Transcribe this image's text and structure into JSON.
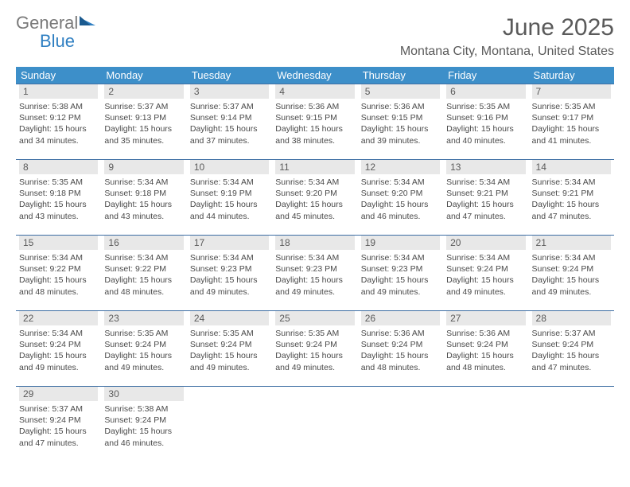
{
  "brand": {
    "part1": "General",
    "part2": "Blue"
  },
  "title": "June 2025",
  "location": "Montana City, Montana, United States",
  "colors": {
    "header_bg": "#3d8fc9",
    "header_text": "#ffffff",
    "rule": "#3d6ea3",
    "daynum_bg": "#e8e8e8",
    "body_text": "#4a4a4a",
    "title_text": "#5a5a5a",
    "logo_gray": "#7a7a7a",
    "logo_blue": "#2f7fc2"
  },
  "fonts": {
    "title_size_pt": 22,
    "location_size_pt": 12,
    "dow_size_pt": 10,
    "body_size_pt": 8
  },
  "days_of_week": [
    "Sunday",
    "Monday",
    "Tuesday",
    "Wednesday",
    "Thursday",
    "Friday",
    "Saturday"
  ],
  "weeks": [
    [
      {
        "n": "1",
        "sr": "5:38 AM",
        "ss": "9:12 PM",
        "dl": "15 hours and 34 minutes."
      },
      {
        "n": "2",
        "sr": "5:37 AM",
        "ss": "9:13 PM",
        "dl": "15 hours and 35 minutes."
      },
      {
        "n": "3",
        "sr": "5:37 AM",
        "ss": "9:14 PM",
        "dl": "15 hours and 37 minutes."
      },
      {
        "n": "4",
        "sr": "5:36 AM",
        "ss": "9:15 PM",
        "dl": "15 hours and 38 minutes."
      },
      {
        "n": "5",
        "sr": "5:36 AM",
        "ss": "9:15 PM",
        "dl": "15 hours and 39 minutes."
      },
      {
        "n": "6",
        "sr": "5:35 AM",
        "ss": "9:16 PM",
        "dl": "15 hours and 40 minutes."
      },
      {
        "n": "7",
        "sr": "5:35 AM",
        "ss": "9:17 PM",
        "dl": "15 hours and 41 minutes."
      }
    ],
    [
      {
        "n": "8",
        "sr": "5:35 AM",
        "ss": "9:18 PM",
        "dl": "15 hours and 43 minutes."
      },
      {
        "n": "9",
        "sr": "5:34 AM",
        "ss": "9:18 PM",
        "dl": "15 hours and 43 minutes."
      },
      {
        "n": "10",
        "sr": "5:34 AM",
        "ss": "9:19 PM",
        "dl": "15 hours and 44 minutes."
      },
      {
        "n": "11",
        "sr": "5:34 AM",
        "ss": "9:20 PM",
        "dl": "15 hours and 45 minutes."
      },
      {
        "n": "12",
        "sr": "5:34 AM",
        "ss": "9:20 PM",
        "dl": "15 hours and 46 minutes."
      },
      {
        "n": "13",
        "sr": "5:34 AM",
        "ss": "9:21 PM",
        "dl": "15 hours and 47 minutes."
      },
      {
        "n": "14",
        "sr": "5:34 AM",
        "ss": "9:21 PM",
        "dl": "15 hours and 47 minutes."
      }
    ],
    [
      {
        "n": "15",
        "sr": "5:34 AM",
        "ss": "9:22 PM",
        "dl": "15 hours and 48 minutes."
      },
      {
        "n": "16",
        "sr": "5:34 AM",
        "ss": "9:22 PM",
        "dl": "15 hours and 48 minutes."
      },
      {
        "n": "17",
        "sr": "5:34 AM",
        "ss": "9:23 PM",
        "dl": "15 hours and 49 minutes."
      },
      {
        "n": "18",
        "sr": "5:34 AM",
        "ss": "9:23 PM",
        "dl": "15 hours and 49 minutes."
      },
      {
        "n": "19",
        "sr": "5:34 AM",
        "ss": "9:23 PM",
        "dl": "15 hours and 49 minutes."
      },
      {
        "n": "20",
        "sr": "5:34 AM",
        "ss": "9:24 PM",
        "dl": "15 hours and 49 minutes."
      },
      {
        "n": "21",
        "sr": "5:34 AM",
        "ss": "9:24 PM",
        "dl": "15 hours and 49 minutes."
      }
    ],
    [
      {
        "n": "22",
        "sr": "5:34 AM",
        "ss": "9:24 PM",
        "dl": "15 hours and 49 minutes."
      },
      {
        "n": "23",
        "sr": "5:35 AM",
        "ss": "9:24 PM",
        "dl": "15 hours and 49 minutes."
      },
      {
        "n": "24",
        "sr": "5:35 AM",
        "ss": "9:24 PM",
        "dl": "15 hours and 49 minutes."
      },
      {
        "n": "25",
        "sr": "5:35 AM",
        "ss": "9:24 PM",
        "dl": "15 hours and 49 minutes."
      },
      {
        "n": "26",
        "sr": "5:36 AM",
        "ss": "9:24 PM",
        "dl": "15 hours and 48 minutes."
      },
      {
        "n": "27",
        "sr": "5:36 AM",
        "ss": "9:24 PM",
        "dl": "15 hours and 48 minutes."
      },
      {
        "n": "28",
        "sr": "5:37 AM",
        "ss": "9:24 PM",
        "dl": "15 hours and 47 minutes."
      }
    ],
    [
      {
        "n": "29",
        "sr": "5:37 AM",
        "ss": "9:24 PM",
        "dl": "15 hours and 47 minutes."
      },
      {
        "n": "30",
        "sr": "5:38 AM",
        "ss": "9:24 PM",
        "dl": "15 hours and 46 minutes."
      },
      null,
      null,
      null,
      null,
      null
    ]
  ],
  "labels": {
    "sunrise": "Sunrise: ",
    "sunset": "Sunset: ",
    "daylight": "Daylight: "
  }
}
